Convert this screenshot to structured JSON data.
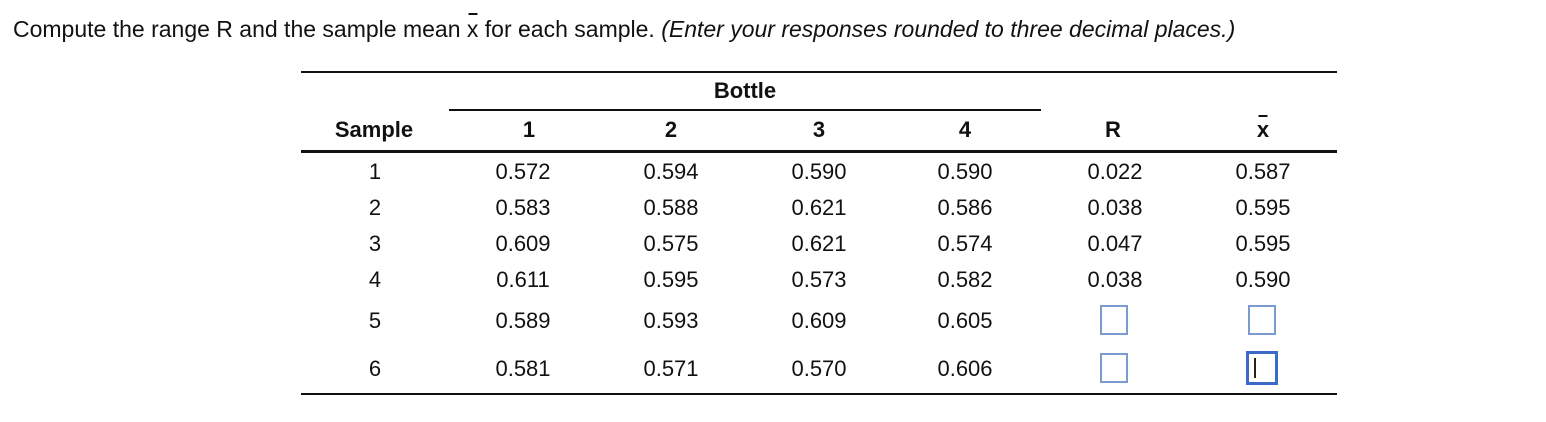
{
  "instruction": {
    "prefix": "Compute the range R and the sample mean ",
    "xbar": "x",
    "suffix": " for each sample. ",
    "paren": "(Enter your responses rounded to three decimal places.)"
  },
  "table": {
    "group_header": "Bottle",
    "headers": {
      "sample": "Sample",
      "b1": "1",
      "b2": "2",
      "b3": "3",
      "b4": "4",
      "r": "R",
      "xbar": "x"
    },
    "rows": [
      {
        "sample": "1",
        "b1": "0.572",
        "b2": "0.594",
        "b3": "0.590",
        "b4": "0.590",
        "r": "0.022",
        "xbar": "0.587"
      },
      {
        "sample": "2",
        "b1": "0.583",
        "b2": "0.588",
        "b3": "0.621",
        "b4": "0.586",
        "r": "0.038",
        "xbar": "0.595"
      },
      {
        "sample": "3",
        "b1": "0.609",
        "b2": "0.575",
        "b3": "0.621",
        "b4": "0.574",
        "r": "0.047",
        "xbar": "0.595"
      },
      {
        "sample": "4",
        "b1": "0.611",
        "b2": "0.595",
        "b3": "0.573",
        "b4": "0.582",
        "r": "0.038",
        "xbar": "0.590"
      },
      {
        "sample": "5",
        "b1": "0.589",
        "b2": "0.593",
        "b3": "0.609",
        "b4": "0.605",
        "r": "",
        "xbar": ""
      },
      {
        "sample": "6",
        "b1": "0.581",
        "b2": "0.571",
        "b3": "0.570",
        "b4": "0.606",
        "r": "",
        "xbar": ""
      }
    ]
  },
  "colors": {
    "input_border": "#7b9bd0",
    "input_active_border": "#3a6bc7"
  }
}
